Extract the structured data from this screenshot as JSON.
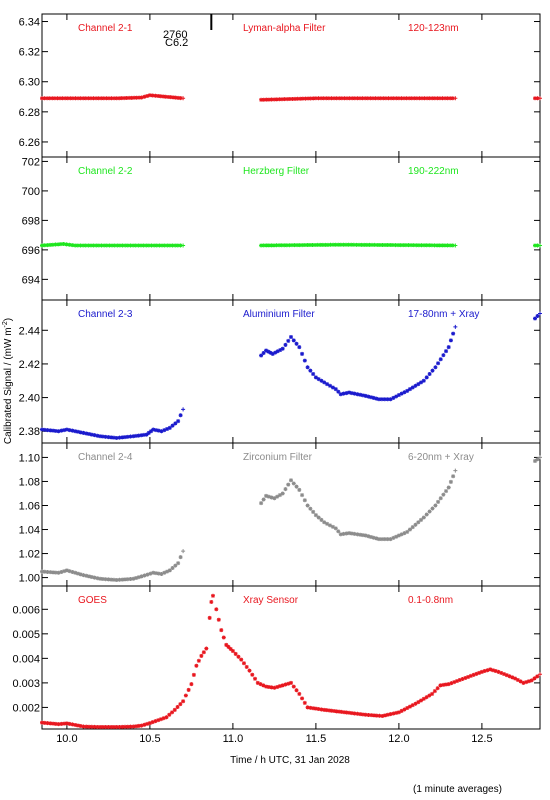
{
  "chart_data": {
    "type": "scatter",
    "xlabel": "Time / h UTC, 31 Jan 2028",
    "ylabel": "Calibrated Signal / (mW m",
    "ylabel_sup": "-2",
    "ylabel_end": ")",
    "footnote": "(1 minute averages)",
    "xlim": [
      9.85,
      12.85
    ],
    "x_ticks": [
      10.0,
      10.5,
      11.0,
      11.5,
      12.0,
      12.5
    ],
    "x_tick_labels": [
      "10.0",
      "10.5",
      "11.0",
      "11.5",
      "12.0",
      "12.5"
    ],
    "event_marker": {
      "x": 10.87,
      "label_top": "2760",
      "label_bottom": "C6.2"
    },
    "panels": [
      {
        "name": "Channel 2-1",
        "filter": "Lyman-alpha Filter",
        "band": "120-123nm",
        "color": "#e8171f",
        "ylim": [
          6.25,
          6.345
        ],
        "y_ticks": [
          6.26,
          6.28,
          6.3,
          6.32,
          6.34
        ],
        "y_tick_labels": [
          "6.26",
          "6.28",
          "6.30",
          "6.32",
          "6.34"
        ],
        "segments": [
          [
            [
              9.85,
              6.289
            ],
            [
              10.3,
              6.289
            ],
            [
              10.45,
              6.2895
            ],
            [
              10.5,
              6.291
            ],
            [
              10.55,
              6.2905
            ],
            [
              10.7,
              6.289
            ]
          ],
          [
            [
              11.17,
              6.288
            ],
            [
              11.5,
              6.289
            ],
            [
              12.0,
              6.289
            ],
            [
              12.34,
              6.289
            ]
          ],
          [
            [
              12.82,
              6.289
            ],
            [
              12.85,
              6.289
            ]
          ]
        ]
      },
      {
        "name": "Channel 2-2",
        "filter": "Herzberg Filter",
        "band": "190-222nm",
        "color": "#1ee61e",
        "ylim": [
          692.6,
          702.3
        ],
        "y_ticks": [
          694,
          696,
          698,
          700,
          702
        ],
        "y_tick_labels": [
          "694",
          "696",
          "698",
          "700",
          "702"
        ],
        "segments": [
          [
            [
              9.85,
              696.3
            ],
            [
              9.98,
              696.4
            ],
            [
              10.05,
              696.3
            ],
            [
              10.7,
              696.3
            ]
          ],
          [
            [
              11.17,
              696.3
            ],
            [
              11.65,
              696.35
            ],
            [
              12.34,
              696.3
            ]
          ],
          [
            [
              12.82,
              696.3
            ],
            [
              12.85,
              696.3
            ]
          ]
        ]
      },
      {
        "name": "Channel 2-3",
        "filter": "Aluminium Filter",
        "band": "17-80nm + Xray",
        "color": "#1a1acd",
        "ylim": [
          2.373,
          2.458
        ],
        "y_ticks": [
          2.38,
          2.4,
          2.42,
          2.44
        ],
        "y_tick_labels": [
          "2.38",
          "2.40",
          "2.42",
          "2.44"
        ],
        "segments": [
          [
            [
              9.85,
              2.381
            ],
            [
              9.95,
              2.38
            ],
            [
              10.0,
              2.381
            ],
            [
              10.1,
              2.379
            ],
            [
              10.2,
              2.377
            ],
            [
              10.3,
              2.376
            ],
            [
              10.4,
              2.377
            ],
            [
              10.48,
              2.378
            ],
            [
              10.52,
              2.381
            ],
            [
              10.57,
              2.38
            ],
            [
              10.62,
              2.382
            ],
            [
              10.67,
              2.386
            ],
            [
              10.7,
              2.393
            ]
          ],
          [
            [
              11.17,
              2.425
            ],
            [
              11.2,
              2.428
            ],
            [
              11.24,
              2.426
            ],
            [
              11.3,
              2.429
            ],
            [
              11.35,
              2.436
            ],
            [
              11.4,
              2.43
            ],
            [
              11.45,
              2.418
            ],
            [
              11.5,
              2.412
            ],
            [
              11.55,
              2.409
            ],
            [
              11.62,
              2.405
            ],
            [
              11.65,
              2.402
            ],
            [
              11.7,
              2.403
            ],
            [
              11.8,
              2.401
            ],
            [
              11.88,
              2.399
            ],
            [
              11.95,
              2.399
            ],
            [
              12.05,
              2.404
            ],
            [
              12.15,
              2.41
            ],
            [
              12.22,
              2.418
            ],
            [
              12.3,
              2.43
            ],
            [
              12.34,
              2.442
            ]
          ],
          [
            [
              12.82,
              2.447
            ],
            [
              12.85,
              2.45
            ]
          ]
        ]
      },
      {
        "name": "Channel 2-4",
        "filter": "Zirconium Filter",
        "band": "6-20nm + Xray",
        "color": "#8c8c8c",
        "ylim": [
          0.993,
          1.112
        ],
        "y_ticks": [
          1.0,
          1.02,
          1.04,
          1.06,
          1.08,
          1.1
        ],
        "y_tick_labels": [
          "1.00",
          "1.02",
          "1.04",
          "1.06",
          "1.08",
          "1.10"
        ],
        "segments": [
          [
            [
              9.85,
              1.005
            ],
            [
              9.95,
              1.004
            ],
            [
              10.0,
              1.006
            ],
            [
              10.1,
              1.002
            ],
            [
              10.2,
              0.999
            ],
            [
              10.3,
              0.998
            ],
            [
              10.4,
              0.999
            ],
            [
              10.45,
              1.001
            ],
            [
              10.52,
              1.004
            ],
            [
              10.57,
              1.003
            ],
            [
              10.62,
              1.006
            ],
            [
              10.67,
              1.012
            ],
            [
              10.7,
              1.022
            ]
          ],
          [
            [
              11.17,
              1.062
            ],
            [
              11.2,
              1.068
            ],
            [
              11.25,
              1.066
            ],
            [
              11.3,
              1.07
            ],
            [
              11.35,
              1.081
            ],
            [
              11.4,
              1.073
            ],
            [
              11.45,
              1.06
            ],
            [
              11.5,
              1.052
            ],
            [
              11.55,
              1.046
            ],
            [
              11.62,
              1.041
            ],
            [
              11.65,
              1.036
            ],
            [
              11.7,
              1.037
            ],
            [
              11.8,
              1.035
            ],
            [
              11.88,
              1.032
            ],
            [
              11.95,
              1.032
            ],
            [
              12.05,
              1.038
            ],
            [
              12.15,
              1.05
            ],
            [
              12.22,
              1.06
            ],
            [
              12.3,
              1.075
            ],
            [
              12.34,
              1.089
            ]
          ],
          [
            [
              12.82,
              1.097
            ],
            [
              12.85,
              1.1
            ]
          ]
        ]
      },
      {
        "name": "GOES",
        "filter": "Xray Sensor",
        "band": "0.1-0.8nm",
        "color": "#e8171f",
        "ylim": [
          0.00112,
          0.00695
        ],
        "y_ticks": [
          0.002,
          0.003,
          0.004,
          0.005,
          0.006
        ],
        "y_tick_labels": [
          "0.002",
          "0.003",
          "0.004",
          "0.005",
          "0.006"
        ],
        "segments": [
          [
            [
              9.85,
              0.00138
            ],
            [
              9.95,
              0.00132
            ],
            [
              10.0,
              0.00135
            ],
            [
              10.1,
              0.00122
            ],
            [
              10.2,
              0.0012
            ],
            [
              10.3,
              0.0012
            ],
            [
              10.4,
              0.00122
            ],
            [
              10.45,
              0.00126
            ],
            [
              10.5,
              0.00136
            ],
            [
              10.55,
              0.00148
            ],
            [
              10.6,
              0.0016
            ],
            [
              10.65,
              0.0019
            ],
            [
              10.7,
              0.00225
            ],
            [
              10.75,
              0.00295
            ],
            [
              10.78,
              0.0037
            ],
            [
              10.81,
              0.0041
            ],
            [
              10.84,
              0.0044
            ],
            [
              10.86,
              0.00565
            ],
            [
              10.87,
              0.0063
            ],
            [
              10.88,
              0.00655
            ],
            [
              10.9,
              0.006
            ],
            [
              10.93,
              0.00515
            ],
            [
              10.96,
              0.00455
            ],
            [
              11.0,
              0.0043
            ],
            [
              11.05,
              0.00395
            ],
            [
              11.1,
              0.0035
            ],
            [
              11.15,
              0.003
            ],
            [
              11.2,
              0.00285
            ],
            [
              11.25,
              0.0028
            ],
            [
              11.3,
              0.0029
            ],
            [
              11.35,
              0.003
            ],
            [
              11.4,
              0.00255
            ],
            [
              11.45,
              0.002
            ],
            [
              11.55,
              0.0019
            ],
            [
              11.7,
              0.00178
            ],
            [
              11.8,
              0.0017
            ],
            [
              11.9,
              0.00165
            ],
            [
              12.0,
              0.0018
            ],
            [
              12.1,
              0.00215
            ],
            [
              12.2,
              0.00255
            ],
            [
              12.25,
              0.0029
            ],
            [
              12.3,
              0.00295
            ],
            [
              12.4,
              0.0032
            ],
            [
              12.5,
              0.00345
            ],
            [
              12.55,
              0.00355
            ],
            [
              12.6,
              0.00345
            ],
            [
              12.7,
              0.00318
            ],
            [
              12.75,
              0.003
            ],
            [
              12.8,
              0.0031
            ],
            [
              12.85,
              0.00335
            ]
          ]
        ]
      }
    ]
  }
}
